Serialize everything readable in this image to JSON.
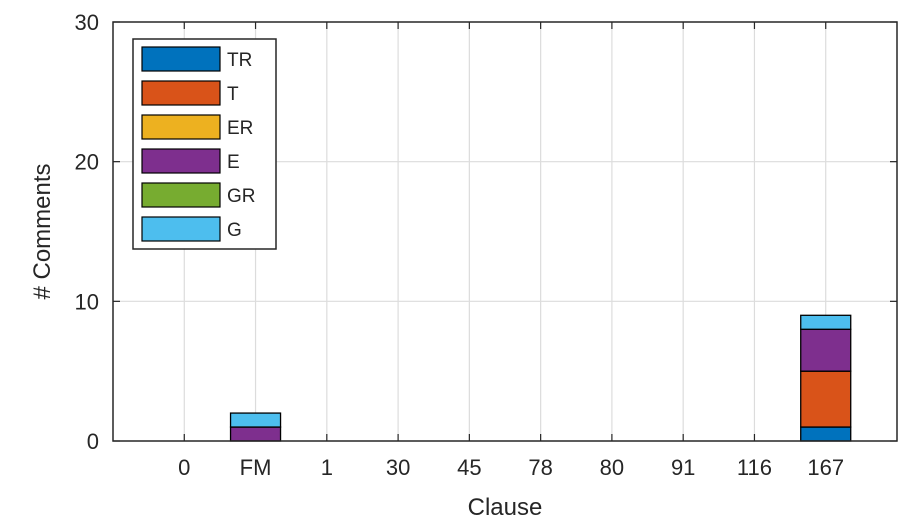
{
  "chart_data": {
    "type": "bar",
    "stacked": true,
    "categories": [
      "0",
      "FM",
      "1",
      "30",
      "45",
      "78",
      "80",
      "91",
      "116",
      "167"
    ],
    "series": [
      {
        "name": "TR",
        "color": "#0072BD",
        "values": [
          0,
          0,
          0,
          0,
          0,
          0,
          0,
          0,
          0,
          1
        ]
      },
      {
        "name": "T",
        "color": "#D95319",
        "values": [
          0,
          0,
          0,
          0,
          0,
          0,
          0,
          0,
          0,
          4
        ]
      },
      {
        "name": "ER",
        "color": "#EDB120",
        "values": [
          0,
          0,
          0,
          0,
          0,
          0,
          0,
          0,
          0,
          0
        ]
      },
      {
        "name": "E",
        "color": "#7E2F8E",
        "values": [
          0,
          1,
          0,
          0,
          0,
          0,
          0,
          0,
          0,
          3
        ]
      },
      {
        "name": "GR",
        "color": "#77AC30",
        "values": [
          0,
          0,
          0,
          0,
          0,
          0,
          0,
          0,
          0,
          0
        ]
      },
      {
        "name": "G",
        "color": "#4DBEEE",
        "values": [
          0,
          1,
          0,
          0,
          0,
          0,
          0,
          0,
          0,
          1
        ]
      }
    ],
    "xlabel": "Clause",
    "ylabel": "# Comments",
    "ylim": [
      0,
      30
    ],
    "yticks": [
      "0",
      "10",
      "20",
      "30"
    ],
    "grid": true,
    "legend_position": "top-left"
  }
}
